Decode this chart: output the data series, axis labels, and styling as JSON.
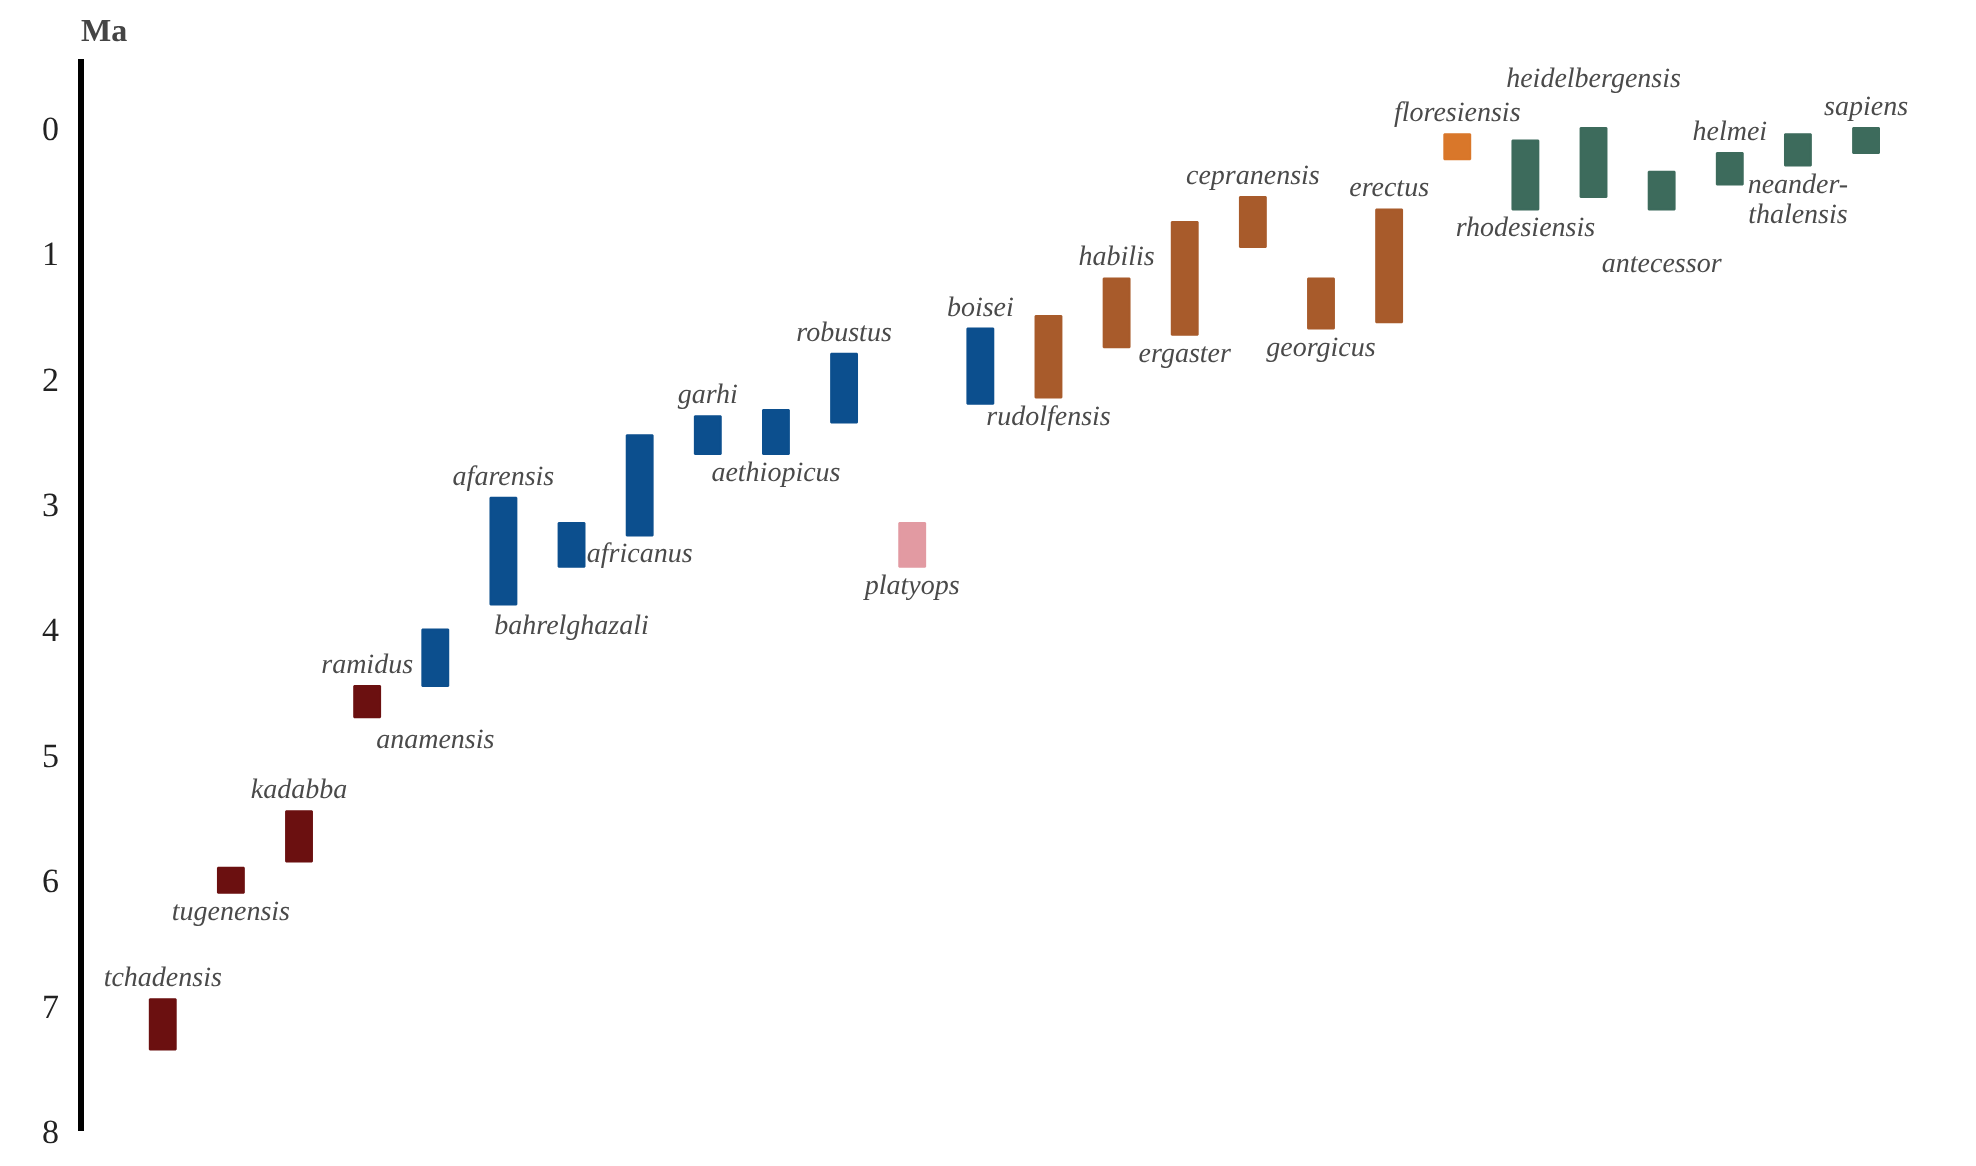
{
  "chart_data": {
    "type": "bar",
    "ylabel": "Ma",
    "categories": [
      null,
      null,
      null,
      null,
      null,
      null,
      null,
      null,
      null,
      null,
      null,
      null,
      null,
      null,
      null,
      null,
      null,
      null,
      null,
      null,
      null,
      null,
      null,
      null,
      null,
      null
    ],
    "base": [
      6.95,
      5.9,
      5.45,
      4.45,
      4.0,
      2.95,
      3.15,
      2.45,
      2.3,
      2.25,
      1.8,
      3.15,
      1.6,
      1.5,
      1.2,
      0.75,
      0.55,
      1.2,
      0.65,
      0.05,
      0.1,
      0.0,
      0.35,
      0.2,
      0.05,
      0.0
    ],
    "values": [
      0.4,
      0.2,
      0.4,
      0.25,
      0.45,
      0.85,
      0.35,
      0.8,
      0.3,
      0.35,
      0.55,
      0.35,
      0.6,
      0.65,
      0.55,
      0.9,
      0.4,
      0.4,
      0.9,
      0.2,
      0.55,
      0.55,
      0.3,
      0.25,
      0.25,
      0.2
    ],
    "colors": [
      "#6b1010",
      "#6b1010",
      "#6b1010",
      "#6b1010",
      "#0c4f8e",
      "#0c4f8e",
      "#0c4f8e",
      "#0c4f8e",
      "#0c4f8e",
      "#0c4f8e",
      "#0c4f8e",
      "#e29aa2",
      "#0c4f8e",
      "#a85b2b",
      "#a85b2b",
      "#a85b2b",
      "#a85b2b",
      "#a85b2b",
      "#a85b2b",
      "#d9772a",
      "#3d6b5c",
      "#3d6b5c",
      "#3d6b5c",
      "#3d6b5c",
      "#3d6b5c",
      "#3d6b5c"
    ],
    "value_labels": [
      "tchadensis",
      "tugenensis",
      "kadabba",
      "ramidus",
      "anamensis",
      "afarensis",
      "bahrelghazali",
      "africanus",
      "garhi",
      "aethiopicus",
      "robustus",
      "platyops",
      "boisei",
      "rudolfensis",
      "habilis",
      "ergaster",
      "cepranensis",
      "georgicus",
      "erectus",
      "floresiensis",
      "rhodesiensis",
      "heidelbergensis",
      "antecessor",
      "helmei",
      "neander-\nthalensis",
      "sapiens"
    ],
    "ylim": [
      8,
      -0.55
    ],
    "yticks": [
      0,
      1,
      2,
      3,
      4,
      5,
      6,
      7,
      8
    ],
    "grid": false
  }
}
